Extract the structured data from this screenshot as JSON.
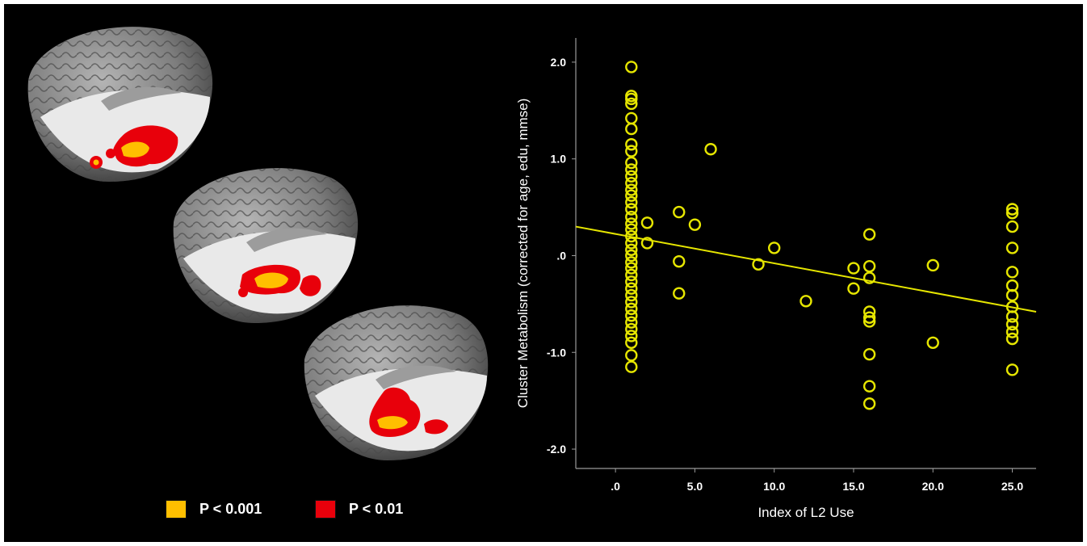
{
  "legend": {
    "items": [
      {
        "label": "P < 0.001",
        "color": "#ffbf00"
      },
      {
        "label": "P < 0.01",
        "color": "#e8000b"
      }
    ]
  },
  "colors": {
    "background": "#000000",
    "marker": "#e6e600",
    "fit_line": "#e6e600",
    "axis": "#9a9a9a",
    "brain_gray": "#8a8a8a",
    "brain_white": "#e8e8e8"
  },
  "chart_data": {
    "type": "scatter",
    "title": "",
    "xlabel": "Index of L2 Use",
    "ylabel": "Cluster Metabolism (corrected for age, edu, mmse)",
    "xlim": [
      -2.5,
      26.5
    ],
    "ylim": [
      -2.2,
      2.25
    ],
    "xticks": [
      0,
      5,
      10,
      15,
      20,
      25
    ],
    "xtick_labels": [
      ".0",
      "5.0",
      "10.0",
      "15.0",
      "20.0",
      "25.0"
    ],
    "yticks": [
      2,
      1,
      0,
      -1,
      -2
    ],
    "ytick_labels": [
      "2.0",
      "1.0",
      ".0",
      "-1.0",
      "-2.0"
    ],
    "grid": false,
    "marker": "open-circle",
    "points": [
      [
        1,
        1.95
      ],
      [
        1,
        1.65
      ],
      [
        1,
        1.62
      ],
      [
        1,
        1.57
      ],
      [
        1,
        1.42
      ],
      [
        1,
        1.31
      ],
      [
        1,
        1.15
      ],
      [
        1,
        1.08
      ],
      [
        1,
        0.96
      ],
      [
        1,
        0.89
      ],
      [
        1,
        0.82
      ],
      [
        1,
        0.75
      ],
      [
        1,
        0.68
      ],
      [
        1,
        0.62
      ],
      [
        1,
        0.55
      ],
      [
        1,
        0.48
      ],
      [
        1,
        0.4
      ],
      [
        1,
        0.33
      ],
      [
        1,
        0.27
      ],
      [
        1,
        0.2
      ],
      [
        1,
        0.13
      ],
      [
        1,
        0.06
      ],
      [
        1,
        0.0
      ],
      [
        1,
        -0.07
      ],
      [
        1,
        -0.13
      ],
      [
        1,
        -0.2
      ],
      [
        1,
        -0.27
      ],
      [
        1,
        -0.34
      ],
      [
        1,
        -0.41
      ],
      [
        1,
        -0.48
      ],
      [
        1,
        -0.55
      ],
      [
        1,
        -0.62
      ],
      [
        1,
        -0.69
      ],
      [
        1,
        -0.76
      ],
      [
        1,
        -0.83
      ],
      [
        1,
        -0.9
      ],
      [
        1,
        -1.03
      ],
      [
        1,
        -1.15
      ],
      [
        2,
        0.34
      ],
      [
        2,
        0.13
      ],
      [
        4,
        0.45
      ],
      [
        4,
        -0.06
      ],
      [
        4,
        -0.39
      ],
      [
        5,
        0.32
      ],
      [
        6,
        1.1
      ],
      [
        9,
        -0.09
      ],
      [
        10,
        0.08
      ],
      [
        12,
        -0.47
      ],
      [
        15,
        -0.13
      ],
      [
        15,
        -0.34
      ],
      [
        16,
        0.22
      ],
      [
        16,
        -0.11
      ],
      [
        16,
        -0.23
      ],
      [
        16,
        -0.58
      ],
      [
        16,
        -0.64
      ],
      [
        16,
        -0.68
      ],
      [
        16,
        -1.02
      ],
      [
        16,
        -1.35
      ],
      [
        16,
        -1.53
      ],
      [
        20,
        -0.1
      ],
      [
        20,
        -0.9
      ],
      [
        25,
        0.48
      ],
      [
        25,
        0.44
      ],
      [
        25,
        0.3
      ],
      [
        25,
        0.08
      ],
      [
        25,
        -0.17
      ],
      [
        25,
        -0.31
      ],
      [
        25,
        -0.41
      ],
      [
        25,
        -0.53
      ],
      [
        25,
        -0.63
      ],
      [
        25,
        -0.71
      ],
      [
        25,
        -0.79
      ],
      [
        25,
        -0.86
      ],
      [
        25,
        -1.18
      ]
    ],
    "fit_line": {
      "x": [
        -2.5,
        26.5
      ],
      "y": [
        0.3,
        -0.58
      ]
    }
  }
}
